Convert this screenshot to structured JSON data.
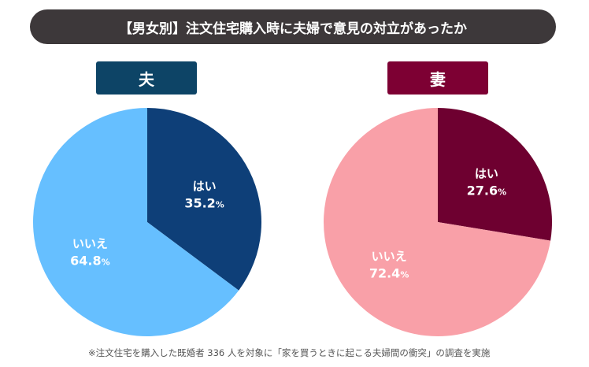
{
  "chart_data": [
    {
      "type": "pie",
      "title": "夫",
      "slices": [
        {
          "label": "はい",
          "value": 35.2,
          "color": "#0e3f78"
        },
        {
          "label": "いいえ",
          "value": 64.8,
          "color": "#66bfff"
        }
      ],
      "label_box_color": "#0d4466"
    },
    {
      "type": "pie",
      "title": "妻",
      "slices": [
        {
          "label": "はい",
          "value": 27.6,
          "color": "#6e0030"
        },
        {
          "label": "いいえ",
          "value": 72.4,
          "color": "#f9a0a8"
        }
      ],
      "label_box_color": "#7d0033"
    }
  ],
  "title": "【男女別】注文住宅購入時に夫婦で意見の対立があったか",
  "note": "※注文住宅を購入した既婚者 336 人を対象に「家を買うときに起こる夫婦間の衝突」の調査を実施"
}
